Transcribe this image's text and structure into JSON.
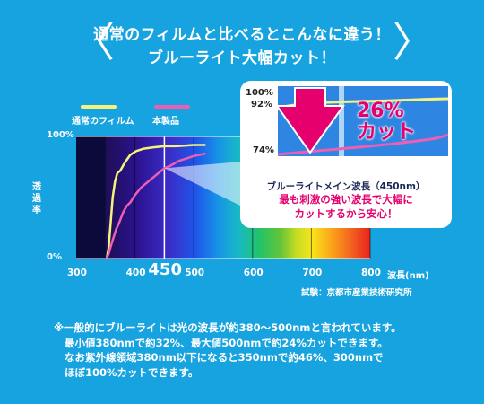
{
  "headline": {
    "line1": "通常のフィルムと比べるとこんなに違う！",
    "line2": "ブルーライト大幅カット！"
  },
  "colors": {
    "background": "#16a3df",
    "normal_film": "#f7f37a",
    "product": "#ec5fb4",
    "arrow": "#e5006e"
  },
  "icons": [
    "chevron-left-icon",
    "chevron-right-icon",
    "down-arrow-icon"
  ],
  "legend": {
    "normal_film": "通常のフィルム",
    "product": "本製品"
  },
  "axis": {
    "y_label": "透過率",
    "x_unit": "波長(nm)",
    "source": "試験：京都市産業技術研究所"
  },
  "callout": {
    "percent": "26%",
    "cut": "カット",
    "caption": "ブルーライトメイン波長（450nm）",
    "message_line1": "最も刺激の強い波長で大幅に",
    "message_line2": "カットするから安心！",
    "labels": [
      "100%",
      "92%",
      "74%"
    ]
  },
  "footnote": [
    "※一般的にブルーライトは光の波長が約380～500nmと言われています。",
    "最小値380nmで約32%、最大値500nmで約24%カットできます。",
    "なお紫外線領域380nm以下になると350nmで約46%、300nmで",
    "ほぼ100%カットできます。"
  ],
  "chart_data": {
    "type": "line",
    "title": "",
    "xlabel": "波長(nm)",
    "ylabel": "透過率",
    "xlim": [
      300,
      800
    ],
    "ylim": [
      0,
      100
    ],
    "x_ticks": [
      {
        "value": 300,
        "label": "300"
      },
      {
        "value": 400,
        "label": "400"
      },
      {
        "value": 450,
        "label": "450",
        "highlight": true
      },
      {
        "value": 500,
        "label": "500"
      },
      {
        "value": 600,
        "label": "600"
      },
      {
        "value": 700,
        "label": "700"
      },
      {
        "value": 800,
        "label": "800"
      }
    ],
    "y_ticks": [
      {
        "value": 0,
        "label": "0%"
      },
      {
        "value": 100,
        "label": "100%"
      }
    ],
    "legend_position": "top-left",
    "series": [
      {
        "name": "通常のフィルム",
        "color": "#f7f37a",
        "x": [
          352,
          355,
          358,
          362,
          366,
          370,
          375,
          382,
          392,
          402,
          415,
          430,
          450,
          470,
          500,
          520
        ],
        "y": [
          0,
          8,
          25,
          50,
          63,
          70,
          72,
          78,
          85,
          88,
          90,
          91,
          92,
          92,
          93,
          93
        ]
      },
      {
        "name": "本製品",
        "color": "#ec5fb4",
        "x": [
          352,
          356,
          360,
          364,
          368,
          372,
          376,
          380,
          386,
          392,
          400,
          410,
          420,
          430,
          440,
          450,
          460,
          475,
          500,
          520
        ],
        "y": [
          0,
          5,
          12,
          18,
          24,
          28,
          33,
          38,
          43,
          46,
          52,
          58,
          62,
          66,
          70,
          74,
          76,
          80,
          84,
          86
        ]
      }
    ],
    "annotation": {
      "text": "26% カット",
      "at_wavelength_nm": 450,
      "normal_film_percent": 92,
      "product_percent": 74
    }
  }
}
